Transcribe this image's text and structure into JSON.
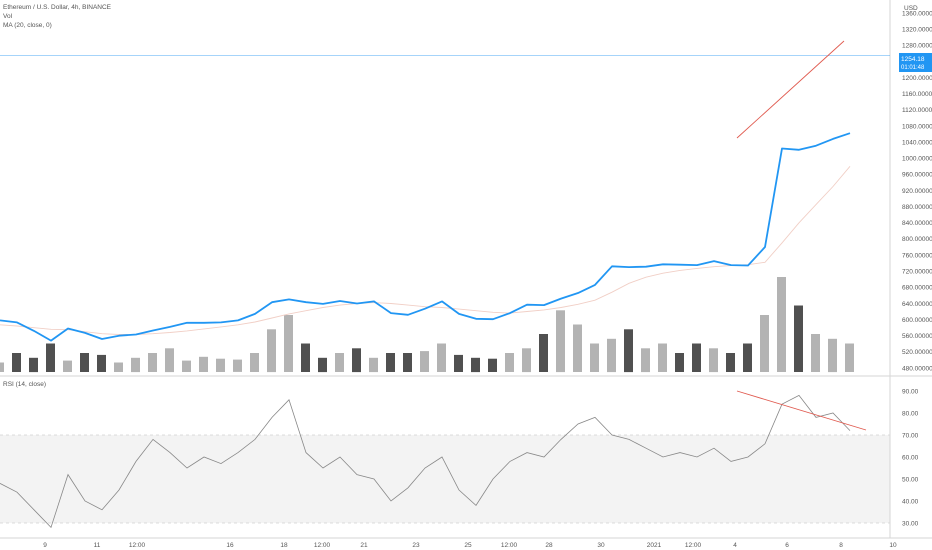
{
  "legend": {
    "symbol": "Ethereum / U.S. Dollar, 4h, BINANCE",
    "vol": "Vol",
    "ma": "MA (20, close, 0)",
    "rsi": "RSI (14, close)"
  },
  "price_axis": {
    "currency": "USD",
    "ticks": [
      "1360.000000",
      "1320.000000",
      "1280.000000",
      "1240.000000",
      "1200.000000",
      "1160.000000",
      "1120.000000",
      "1080.000000",
      "1040.000000",
      "1000.000000",
      "960.000000",
      "920.000000",
      "880.000000",
      "840.000000",
      "800.000000",
      "760.000000",
      "720.000000",
      "680.000000",
      "640.000000",
      "600.000000",
      "560.000000",
      "520.000000",
      "480.000000"
    ],
    "last_price": "1254.18",
    "countdown": "01:01:48"
  },
  "rsi_axis": {
    "ticks": [
      "90.00",
      "80.00",
      "70.00",
      "60.00",
      "50.00",
      "40.00",
      "30.00"
    ]
  },
  "time_axis": {
    "labels": [
      "9",
      "11",
      "12:00",
      "16",
      "18",
      "12:00",
      "21",
      "23",
      "25",
      "12:00",
      "28",
      "30",
      "2021",
      "12:00",
      "4",
      "6",
      "8",
      "10"
    ]
  },
  "colors": {
    "price_line": "#2196f3",
    "ma_line": "#f1cfc6",
    "trendline": "#e05a4f",
    "rsi_line": "#888888",
    "vol_dark": "#505050",
    "vol_light": "#b3b3b3",
    "rsi_band": "#f3f3f3",
    "last_price_bg": "#2196f3"
  },
  "chart_data": [
    {
      "type": "line",
      "title": "Ethereum / U.S. Dollar, 4h, BINANCE",
      "x_unit": "4h bar index",
      "x": [
        0,
        5,
        10,
        15,
        20,
        25,
        30,
        35,
        40,
        45,
        50,
        55,
        60,
        65,
        70,
        75,
        80,
        85,
        90,
        95,
        100,
        105,
        110,
        115,
        120,
        125,
        130,
        135,
        140,
        145,
        150,
        155,
        160,
        165,
        170,
        175,
        180,
        185,
        190,
        195,
        200,
        205,
        210,
        215,
        220,
        225,
        230,
        235,
        240,
        245,
        250
      ],
      "series": [
        {
          "name": "ETHUSD",
          "values": [
            598,
            593,
            572,
            548,
            578,
            567,
            552,
            560,
            563,
            573,
            582,
            592,
            592,
            593,
            598,
            614,
            643,
            650,
            643,
            639,
            646,
            640,
            645,
            616,
            612,
            627,
            645,
            614,
            602,
            601,
            616,
            637,
            636,
            652,
            666,
            686,
            732,
            730,
            731,
            737,
            736,
            735,
            745,
            735,
            734,
            780,
            1024,
            1021,
            1031,
            1048,
            1062
          ]
        },
        {
          "name": "MA (20, close, 0)",
          "values": [
            587,
            584,
            580,
            576,
            575,
            570,
            565,
            563,
            563,
            565,
            568,
            572,
            577,
            582,
            587,
            594,
            604,
            614,
            622,
            630,
            636,
            640,
            642,
            640,
            636,
            632,
            630,
            626,
            622,
            618,
            616,
            620,
            624,
            630,
            638,
            648,
            668,
            690,
            705,
            715,
            722,
            727,
            731,
            734,
            736,
            742,
            790,
            840,
            885,
            930,
            980
          ]
        }
      ],
      "ylim": [
        470,
        1385
      ]
    },
    {
      "type": "bar",
      "title": "Vol",
      "values_relative": [
        0.1,
        0.2,
        0.15,
        0.3,
        0.12,
        0.2,
        0.18,
        0.1,
        0.15,
        0.2,
        0.25,
        0.12,
        0.16,
        0.14,
        0.13,
        0.2,
        0.45,
        0.6,
        0.3,
        0.15,
        0.2,
        0.25,
        0.15,
        0.2,
        0.2,
        0.22,
        0.3,
        0.18,
        0.15,
        0.14,
        0.2,
        0.25,
        0.4,
        0.65,
        0.5,
        0.3,
        0.35,
        0.45,
        0.25,
        0.3,
        0.2,
        0.3,
        0.25,
        0.2,
        0.3,
        0.6,
        1.0,
        0.7,
        0.4,
        0.35,
        0.3
      ]
    },
    {
      "type": "line",
      "title": "RSI (14, close)",
      "series": [
        {
          "name": "RSI",
          "values": [
            48,
            44,
            36,
            28,
            52,
            40,
            36,
            45,
            58,
            68,
            62,
            55,
            60,
            57,
            62,
            68,
            78,
            86,
            62,
            55,
            60,
            52,
            50,
            40,
            46,
            55,
            60,
            45,
            38,
            50,
            58,
            62,
            60,
            68,
            75,
            78,
            70,
            68,
            64,
            60,
            62,
            60,
            64,
            58,
            60,
            66,
            84,
            88,
            78,
            80,
            72
          ]
        }
      ],
      "ylim": [
        25,
        95
      ],
      "levels": [
        70,
        30
      ]
    }
  ]
}
